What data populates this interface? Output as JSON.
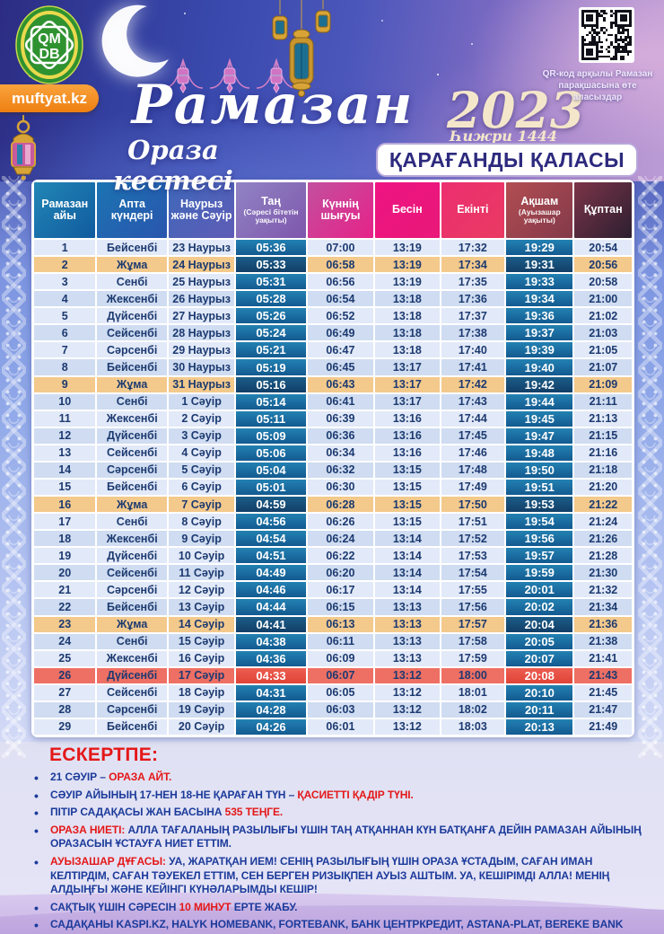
{
  "header": {
    "logo_line1": "QM",
    "logo_line2": "DB",
    "site": "muftyat.kz",
    "title": "Рамазан",
    "subtitle": "Ораза кестесі",
    "year": "2023",
    "hijri_year": "Һижри 1444 жыл",
    "qr_caption": "QR-код арқылы Рамазан парақшасына өте аласыздар",
    "city": "ҚАРАҒАНДЫ ҚАЛАСЫ"
  },
  "colors": {
    "friday_row": "#f3c98c",
    "qadir_row": "#ee6f63",
    "dark_time_cell": "#135a90",
    "table_text": "#1c3a70",
    "note_text": "#1b3a9a",
    "note_accent": "#e41818",
    "badge_orange": "#f68b1f",
    "year_cream": "#f4e6ca",
    "city_text": "#2d2a7e"
  },
  "table": {
    "columns": [
      {
        "label": "Рамазан айы",
        "bg": [
          "#2186b6",
          "#115b9e"
        ]
      },
      {
        "label": "Апта күндері",
        "bg": [
          "#1b74b2",
          "#2a55ae"
        ]
      },
      {
        "label": "Наурыз және Сәуір",
        "bg": [
          "#3f68ba",
          "#5f5cb6"
        ]
      },
      {
        "label": "Таң",
        "sub": "(Сәресі бітетін уақыты)",
        "bg": [
          "#9184c4",
          "#7e56ac"
        ]
      },
      {
        "label": "Күннің шығуы",
        "bg": [
          "#c2509e",
          "#e62288"
        ]
      },
      {
        "label": "Бесін",
        "bg": [
          "#ee1483",
          "#e91878"
        ]
      },
      {
        "label": "Екінті",
        "bg": [
          "#ec2f70",
          "#e93a62"
        ]
      },
      {
        "label": "Ақшам",
        "sub": "(Ауызашар уақыты)",
        "bg": [
          "#b24e52",
          "#83394a"
        ]
      },
      {
        "label": "Құптан",
        "bg": [
          "#7c3448",
          "#2c1f30"
        ]
      }
    ],
    "rows": [
      {
        "n": "1",
        "day": "Бейсенбі",
        "date": "23 Наурыз",
        "t": [
          "05:36",
          "07:00",
          "13:19",
          "17:32",
          "19:29",
          "20:54"
        ],
        "hl": ""
      },
      {
        "n": "2",
        "day": "Жұма",
        "date": "24 Наурыз",
        "t": [
          "05:33",
          "06:58",
          "13:19",
          "17:34",
          "19:31",
          "20:56"
        ],
        "hl": "f"
      },
      {
        "n": "3",
        "day": "Сенбі",
        "date": "25 Наурыз",
        "t": [
          "05:31",
          "06:56",
          "13:19",
          "17:35",
          "19:33",
          "20:58"
        ],
        "hl": ""
      },
      {
        "n": "4",
        "day": "Жексенбі",
        "date": "26 Наурыз",
        "t": [
          "05:28",
          "06:54",
          "13:18",
          "17:36",
          "19:34",
          "21:00"
        ],
        "hl": ""
      },
      {
        "n": "5",
        "day": "Дүйсенбі",
        "date": "27 Наурыз",
        "t": [
          "05:26",
          "06:52",
          "13:18",
          "17:37",
          "19:36",
          "21:02"
        ],
        "hl": ""
      },
      {
        "n": "6",
        "day": "Сейсенбі",
        "date": "28 Наурыз",
        "t": [
          "05:24",
          "06:49",
          "13:18",
          "17:38",
          "19:37",
          "21:03"
        ],
        "hl": ""
      },
      {
        "n": "7",
        "day": "Сәрсенбі",
        "date": "29 Наурыз",
        "t": [
          "05:21",
          "06:47",
          "13:18",
          "17:40",
          "19:39",
          "21:05"
        ],
        "hl": ""
      },
      {
        "n": "8",
        "day": "Бейсенбі",
        "date": "30 Наурыз",
        "t": [
          "05:19",
          "06:45",
          "13:17",
          "17:41",
          "19:40",
          "21:07"
        ],
        "hl": ""
      },
      {
        "n": "9",
        "day": "Жұма",
        "date": "31 Наурыз",
        "t": [
          "05:16",
          "06:43",
          "13:17",
          "17:42",
          "19:42",
          "21:09"
        ],
        "hl": "f"
      },
      {
        "n": "10",
        "day": "Сенбі",
        "date": "1 Сәуір",
        "t": [
          "05:14",
          "06:41",
          "13:17",
          "17:43",
          "19:44",
          "21:11"
        ],
        "hl": ""
      },
      {
        "n": "11",
        "day": "Жексенбі",
        "date": "2 Сәуір",
        "t": [
          "05:11",
          "06:39",
          "13:16",
          "17:44",
          "19:45",
          "21:13"
        ],
        "hl": ""
      },
      {
        "n": "12",
        "day": "Дүйсенбі",
        "date": "3 Сәуір",
        "t": [
          "05:09",
          "06:36",
          "13:16",
          "17:45",
          "19:47",
          "21:15"
        ],
        "hl": ""
      },
      {
        "n": "13",
        "day": "Сейсенбі",
        "date": "4 Сәуір",
        "t": [
          "05:06",
          "06:34",
          "13:16",
          "17:46",
          "19:48",
          "21:16"
        ],
        "hl": ""
      },
      {
        "n": "14",
        "day": "Сәрсенбі",
        "date": "5 Сәуір",
        "t": [
          "05:04",
          "06:32",
          "13:15",
          "17:48",
          "19:50",
          "21:18"
        ],
        "hl": ""
      },
      {
        "n": "15",
        "day": "Бейсенбі",
        "date": "6 Сәуір",
        "t": [
          "05:01",
          "06:30",
          "13:15",
          "17:49",
          "19:51",
          "21:20"
        ],
        "hl": ""
      },
      {
        "n": "16",
        "day": "Жұма",
        "date": "7 Сәуір",
        "t": [
          "04:59",
          "06:28",
          "13:15",
          "17:50",
          "19:53",
          "21:22"
        ],
        "hl": "f"
      },
      {
        "n": "17",
        "day": "Сенбі",
        "date": "8 Сәуір",
        "t": [
          "04:56",
          "06:26",
          "13:15",
          "17:51",
          "19:54",
          "21:24"
        ],
        "hl": ""
      },
      {
        "n": "18",
        "day": "Жексенбі",
        "date": "9 Сәуір",
        "t": [
          "04:54",
          "06:24",
          "13:14",
          "17:52",
          "19:56",
          "21:26"
        ],
        "hl": ""
      },
      {
        "n": "19",
        "day": "Дүйсенбі",
        "date": "10 Сәуір",
        "t": [
          "04:51",
          "06:22",
          "13:14",
          "17:53",
          "19:57",
          "21:28"
        ],
        "hl": ""
      },
      {
        "n": "20",
        "day": "Сейсенбі",
        "date": "11 Сәуір",
        "t": [
          "04:49",
          "06:20",
          "13:14",
          "17:54",
          "19:59",
          "21:30"
        ],
        "hl": ""
      },
      {
        "n": "21",
        "day": "Сәрсенбі",
        "date": "12 Сәуір",
        "t": [
          "04:46",
          "06:17",
          "13:14",
          "17:55",
          "20:01",
          "21:32"
        ],
        "hl": ""
      },
      {
        "n": "22",
        "day": "Бейсенбі",
        "date": "13 Сәуір",
        "t": [
          "04:44",
          "06:15",
          "13:13",
          "17:56",
          "20:02",
          "21:34"
        ],
        "hl": ""
      },
      {
        "n": "23",
        "day": "Жұма",
        "date": "14 Сәуір",
        "t": [
          "04:41",
          "06:13",
          "13:13",
          "17:57",
          "20:04",
          "21:36"
        ],
        "hl": "f"
      },
      {
        "n": "24",
        "day": "Сенбі",
        "date": "15 Сәуір",
        "t": [
          "04:38",
          "06:11",
          "13:13",
          "17:58",
          "20:05",
          "21:38"
        ],
        "hl": ""
      },
      {
        "n": "25",
        "day": "Жексенбі",
        "date": "16 Сәуір",
        "t": [
          "04:36",
          "06:09",
          "13:13",
          "17:59",
          "20:07",
          "21:41"
        ],
        "hl": ""
      },
      {
        "n": "26",
        "day": "Дүйсенбі",
        "date": "17 Сәуір",
        "t": [
          "04:33",
          "06:07",
          "13:12",
          "18:00",
          "20:08",
          "21:43"
        ],
        "hl": "q"
      },
      {
        "n": "27",
        "day": "Сейсенбі",
        "date": "18 Сәуір",
        "t": [
          "04:31",
          "06:05",
          "13:12",
          "18:01",
          "20:10",
          "21:45"
        ],
        "hl": ""
      },
      {
        "n": "28",
        "day": "Сәрсенбі",
        "date": "19 Сәуір",
        "t": [
          "04:28",
          "06:03",
          "13:12",
          "18:02",
          "20:11",
          "21:47"
        ],
        "hl": ""
      },
      {
        "n": "29",
        "day": "Бейсенбі",
        "date": "20 Сәуір",
        "t": [
          "04:26",
          "06:01",
          "13:12",
          "18:03",
          "20:13",
          "21:49"
        ],
        "hl": ""
      }
    ]
  },
  "notes": {
    "heading": "ЕСКЕРТПЕ:",
    "items": [
      [
        {
          "t": "21 СӘУІР – "
        },
        {
          "t": "ОРАЗА АЙТ.",
          "r": 1
        }
      ],
      [
        {
          "t": "СӘУІР АЙЫНЫҢ 17-НЕН 18-НЕ ҚАРАҒАН ТҮН – "
        },
        {
          "t": "ҚАСИЕТТІ ҚАДІР ТҮНІ.",
          "r": 1
        }
      ],
      [
        {
          "t": "ПІТІР САДАҚАСЫ ЖАН БАСЫНА "
        },
        {
          "t": "535 ТЕҢГЕ.",
          "r": 1
        }
      ],
      [
        {
          "t": "ОРАЗА НИЕТІ: ",
          "r": 1
        },
        {
          "t": "АЛЛА ТАҒАЛАНЫҢ РАЗЫЛЫҒЫ ҮШІН ТАҢ АТҚАННАН КҮН БАТҚАНҒА ДЕЙІН РАМАЗАН АЙЫНЫҢ ОРАЗАСЫН ҰСТАУҒА НИЕТ ЕТТІМ."
        }
      ],
      [
        {
          "t": "АУЫЗАШАР ДҰҒАСЫ: ",
          "r": 1
        },
        {
          "t": "УА, ЖАРАТҚАН ИЕМ! СЕНІҢ РАЗЫЛЫҒЫҢ ҮШІН ОРАЗА ҰСТАДЫМ, САҒАН ИМАН КЕЛТІРДІМ, САҒАН ТӘУЕКЕЛ ЕТТІМ, СЕН БЕРГЕН РИЗЫҚПЕН АУЫЗ АШТЫМ. УА, КЕШІРІМДІ АЛЛА! МЕНІҢ АЛДЫҢҒЫ ЖӘНЕ КЕЙІНГІ КҮНӘЛАРЫМДЫ КЕШІР!"
        }
      ],
      [
        {
          "t": "САҚТЫҚ ҮШІН СӘРЕСІН "
        },
        {
          "t": "10 МИНУТ ",
          "r": 1
        },
        {
          "t": "ЕРТЕ ЖАБУ."
        }
      ],
      [
        {
          "t": "САДАҚАНЫ KASPI.KZ, HALYK HOMEBANK, FORTEBANK, БАНК ЦЕНТРКРЕДИТ, ASTANA-PLAT, BEREKE BANK МОБИЛЬДІ ҚОСЫМШАЛАРЫ ЖӘНЕ ҚАЗПОЧТА АРҚЫЛЫ АУДАРУҒА БОЛАДЫ."
        }
      ]
    ]
  }
}
